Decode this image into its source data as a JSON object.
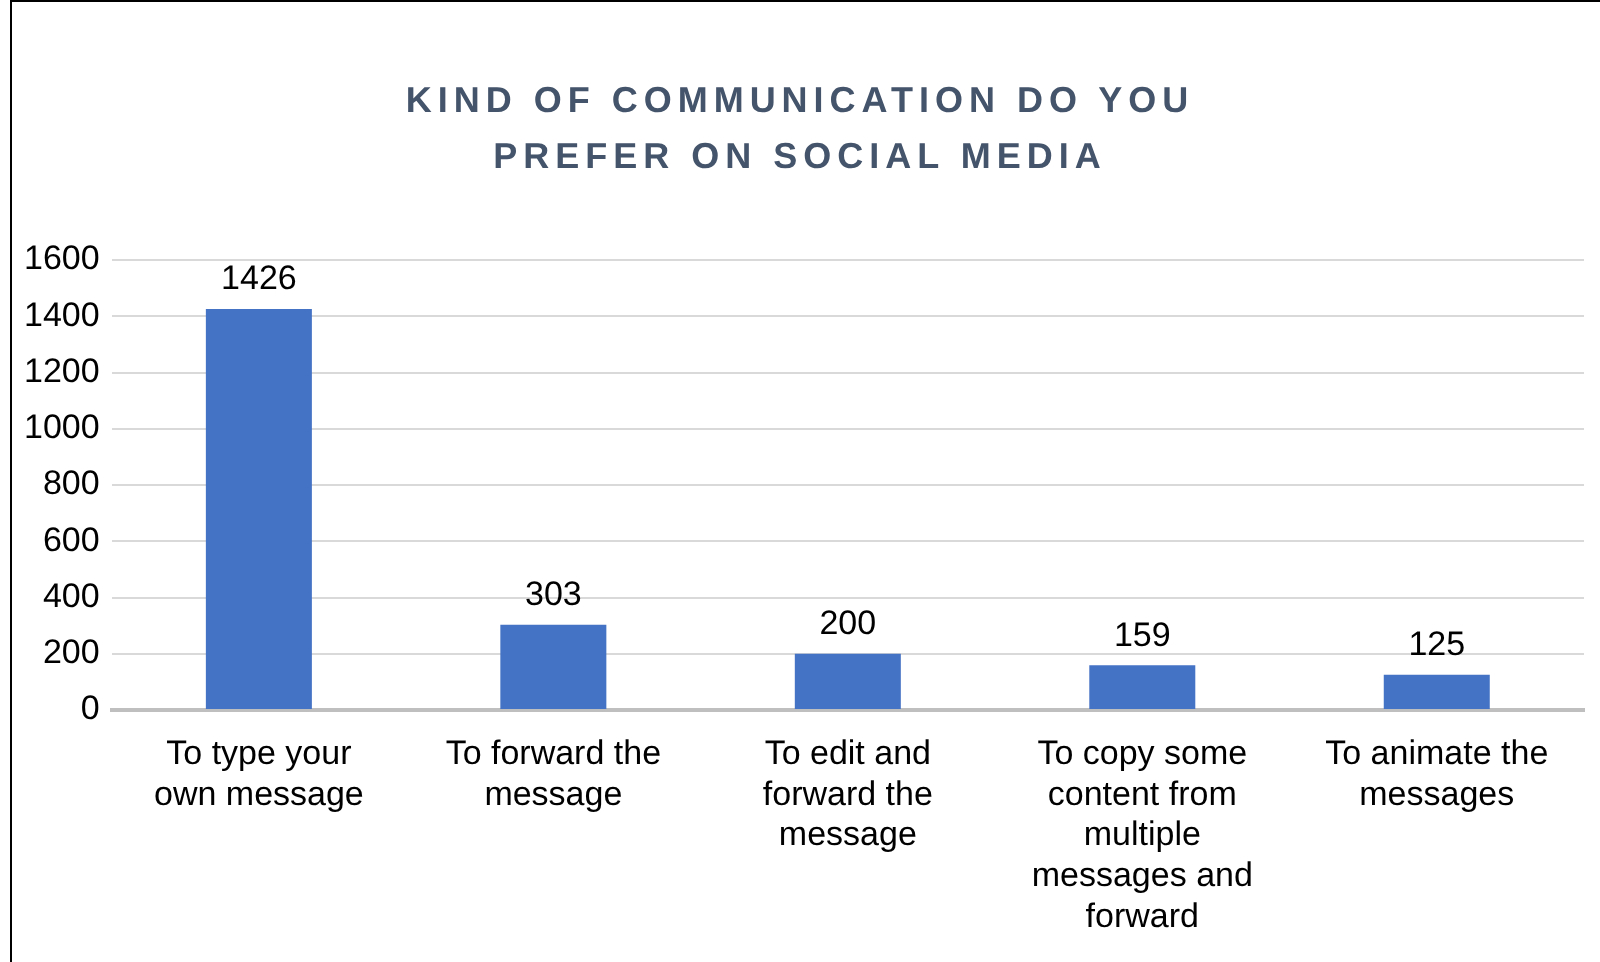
{
  "chart_data": {
    "type": "bar",
    "title": "KIND OF COMMUNICATION DO YOU PREFER ON SOCIAL MEDIA",
    "categories": [
      "To type your own message",
      "To forward the message",
      "To edit and forward the message",
      "To copy some content from multiple messages and forward",
      "To animate the messages"
    ],
    "values": [
      1426,
      303,
      200,
      159,
      125
    ],
    "color": "#4472c4",
    "ylim": [
      0,
      1600
    ],
    "yticks": [
      0,
      200,
      400,
      600,
      800,
      1000,
      1200,
      1400,
      1600
    ],
    "grid": "y",
    "data_labels": true,
    "legend": false
  }
}
